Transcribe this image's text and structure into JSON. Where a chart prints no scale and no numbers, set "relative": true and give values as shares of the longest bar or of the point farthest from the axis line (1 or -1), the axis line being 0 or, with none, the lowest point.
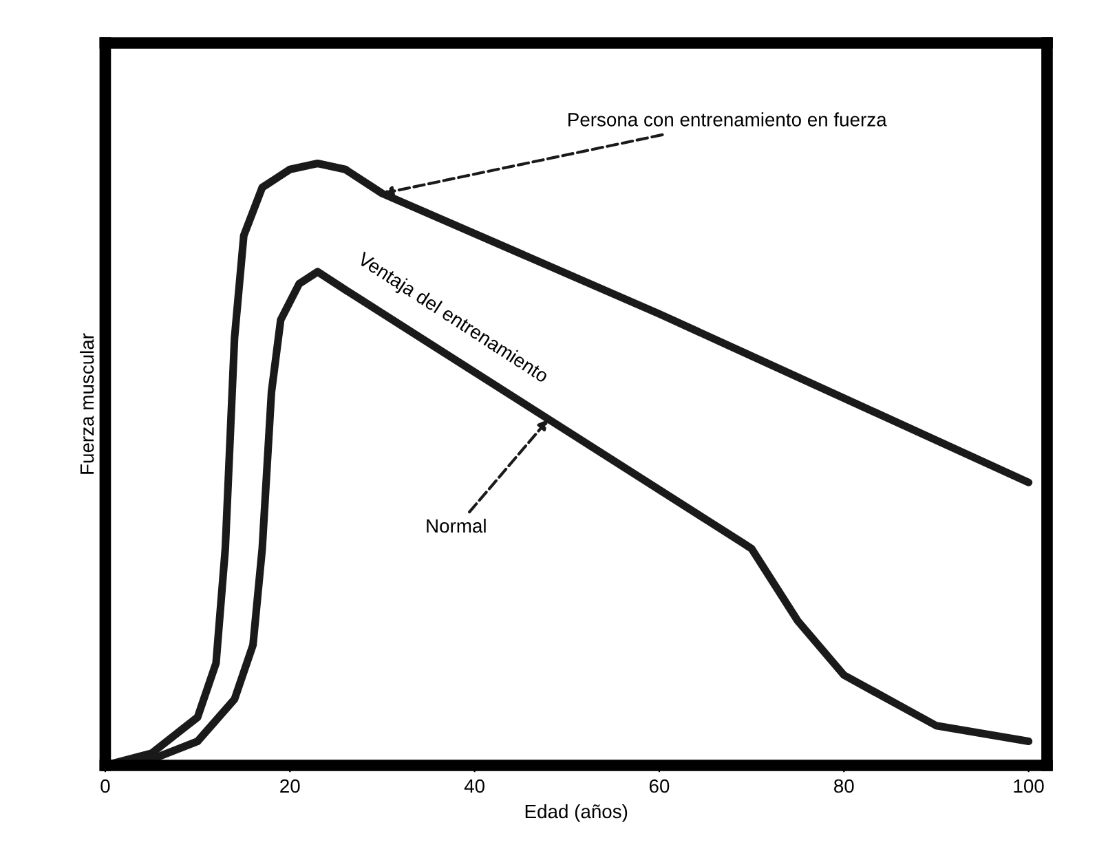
{
  "chart_data": {
    "type": "line",
    "relative": true,
    "xlabel": "Edad (años)",
    "ylabel": "Fuerza muscular",
    "xlim": [
      0,
      102
    ],
    "xticks": [
      0,
      20,
      40,
      60,
      80,
      100
    ],
    "grid": false,
    "marker": "none",
    "line_style": "solid",
    "series": [
      {
        "color": "#1a1a1a",
        "x": [
          0,
          5,
          10,
          12,
          13,
          14,
          15,
          17,
          20,
          23,
          26,
          30,
          60,
          100
        ],
        "values": [
          0,
          0.02,
          0.08,
          0.17,
          0.36,
          0.71,
          0.88,
          0.96,
          0.99,
          1.0,
          0.99,
          0.95,
          0.75,
          0.47
        ]
      },
      {
        "color": "#1a1a1a",
        "x": [
          0,
          5,
          10,
          14,
          16,
          17,
          18,
          19,
          21,
          23,
          26,
          69,
          70,
          75,
          80,
          90,
          100
        ],
        "values": [
          0,
          0.01,
          0.04,
          0.11,
          0.2,
          0.36,
          0.62,
          0.74,
          0.8,
          0.82,
          0.79,
          0.37,
          0.36,
          0.24,
          0.15,
          0.066,
          0.04
        ]
      }
    ],
    "annotations": [
      {
        "text": "Persona con entrenamiento en fuerza",
        "x": 30,
        "y": 0.95
      },
      "Ventaja del entrenamiento",
      {
        "text": "Normal",
        "x": 48,
        "y": 0.575
      }
    ]
  }
}
